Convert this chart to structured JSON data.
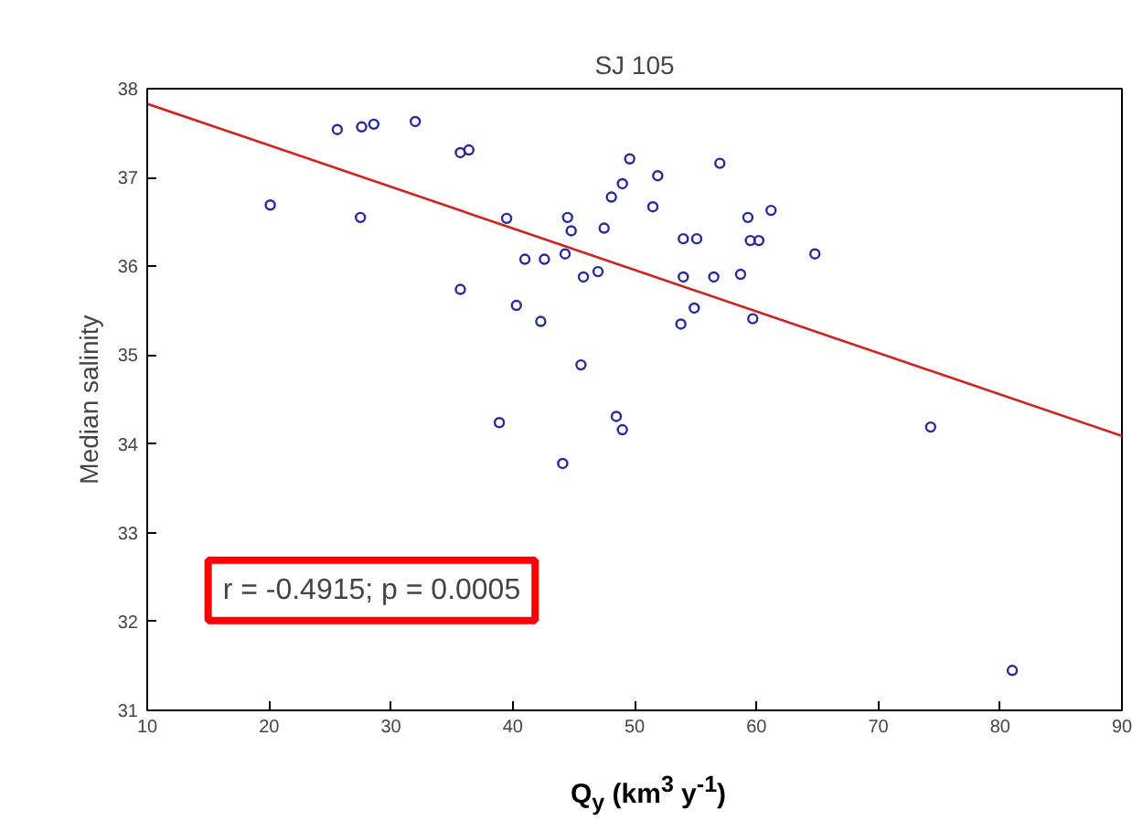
{
  "chart_data": {
    "type": "scatter",
    "title": "SJ 105",
    "xlabel": "Q$_{y}$ (km$^{3}$ y$^{-1}$)",
    "ylabel": "Median salinity",
    "xlim": [
      10,
      90
    ],
    "xticks": [
      10,
      20,
      30,
      40,
      50,
      60,
      70,
      80,
      90
    ],
    "ylim": [
      31,
      38
    ],
    "yticks": [
      31,
      32,
      33,
      34,
      35,
      36,
      37,
      38
    ],
    "grid": false,
    "series": [
      {
        "marker": "circle",
        "color": "#2a2aa0",
        "x": [
          20.1,
          25.6,
          27.6,
          28.6,
          32.0,
          35.7,
          36.4,
          27.5,
          39.5,
          44.5,
          44.8,
          47.5,
          48.1,
          49.0,
          49.6,
          51.5,
          51.9,
          41.0,
          42.6,
          44.3,
          45.8,
          47.0,
          35.7,
          40.3,
          42.3,
          45.6,
          38.9,
          48.5,
          49.0,
          44.1,
          57.0,
          59.3,
          61.2,
          54.0,
          55.1,
          59.5,
          60.2,
          64.8,
          54.0,
          56.5,
          58.7,
          54.9,
          53.8,
          59.7,
          74.3,
          81.0
        ],
        "values": [
          36.69,
          37.54,
          37.57,
          37.6,
          37.63,
          37.28,
          37.31,
          36.55,
          36.54,
          36.55,
          36.4,
          36.43,
          36.78,
          36.93,
          37.21,
          36.67,
          37.02,
          36.08,
          36.08,
          36.14,
          35.88,
          35.94,
          35.74,
          35.56,
          35.38,
          34.89,
          34.24,
          34.31,
          34.16,
          33.78,
          37.16,
          36.55,
          36.63,
          36.31,
          36.31,
          36.29,
          36.29,
          36.14,
          35.88,
          35.88,
          35.91,
          35.53,
          35.35,
          35.41,
          34.19,
          31.45
        ]
      },
      {
        "type": "line",
        "marker": "none",
        "color": "#d42020",
        "x": [
          10,
          90
        ],
        "values": [
          37.83,
          34.09
        ]
      }
    ],
    "annotations": [
      "r = -0.4915; p = 0.0005"
    ]
  }
}
